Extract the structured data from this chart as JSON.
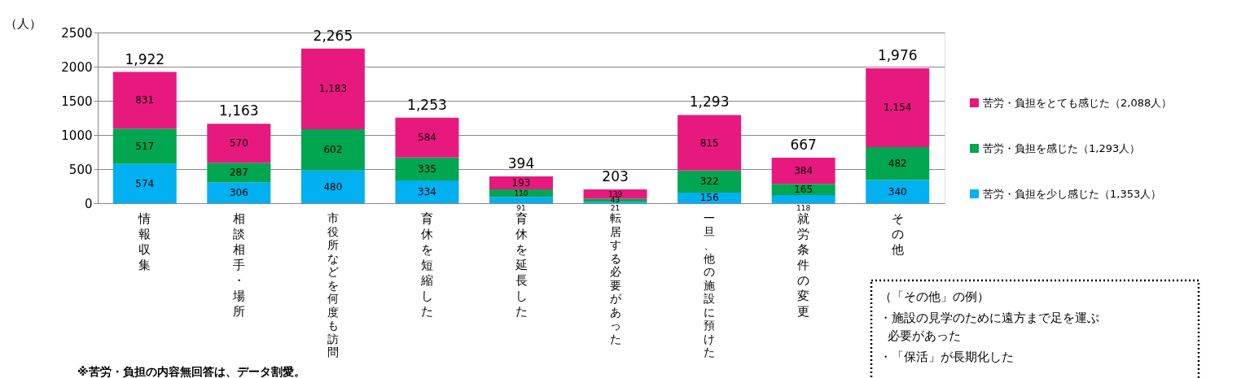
{
  "chart_data": {
    "type": "bar",
    "stacked": true,
    "ylabel": "（人）",
    "categories": [
      "情報収集",
      "相談相手・場所",
      "市役所などを何度も訪問",
      "育休を短縮した",
      "育休を延長した",
      "転居する必要があった",
      "一旦、他の施設に預けた",
      "就労条件の変更",
      "その他"
    ],
    "series": [
      {
        "name": "苦労・負担を少し感じた（1,353人）",
        "color": "#00b0f0",
        "values": [
          574,
          306,
          480,
          334,
          91,
          21,
          156,
          118,
          340
        ],
        "value_labels": [
          "574",
          "306",
          "480",
          "334",
          "91",
          "21",
          "156",
          "118",
          "340"
        ]
      },
      {
        "name": "苦労・負担を感じた（1,293人）",
        "color": "#00a650",
        "values": [
          517,
          287,
          602,
          335,
          110,
          43,
          322,
          165,
          482
        ],
        "value_labels": [
          "517",
          "287",
          "602",
          "335",
          "110",
          "43",
          "322",
          "165",
          "482"
        ]
      },
      {
        "name": "苦労・負担をとても感じた（2,088人）",
        "color": "#e8197e",
        "values": [
          831,
          570,
          1183,
          584,
          193,
          139,
          815,
          384,
          1154
        ],
        "value_labels": [
          "831",
          "570",
          "1,183",
          "584",
          "193",
          "139",
          "815",
          "384",
          "1,154"
        ]
      }
    ],
    "totals": [
      "1,922",
      "1,163",
      "2,265",
      "1,253",
      "394",
      "203",
      "1,293",
      "667",
      "1,976"
    ],
    "ylim": [
      0,
      2500
    ],
    "yticks": [
      0,
      500,
      1000,
      1500,
      2000,
      2500
    ],
    "grid": "y",
    "legend": "right",
    "annotations": [
      "※苦労・負担の内容無回答は、データ割愛。",
      "（「その他」の例）",
      "・施設の見学のために遠方まで足を運ぶ必要があった",
      "・「保活」が長期化した"
    ]
  }
}
